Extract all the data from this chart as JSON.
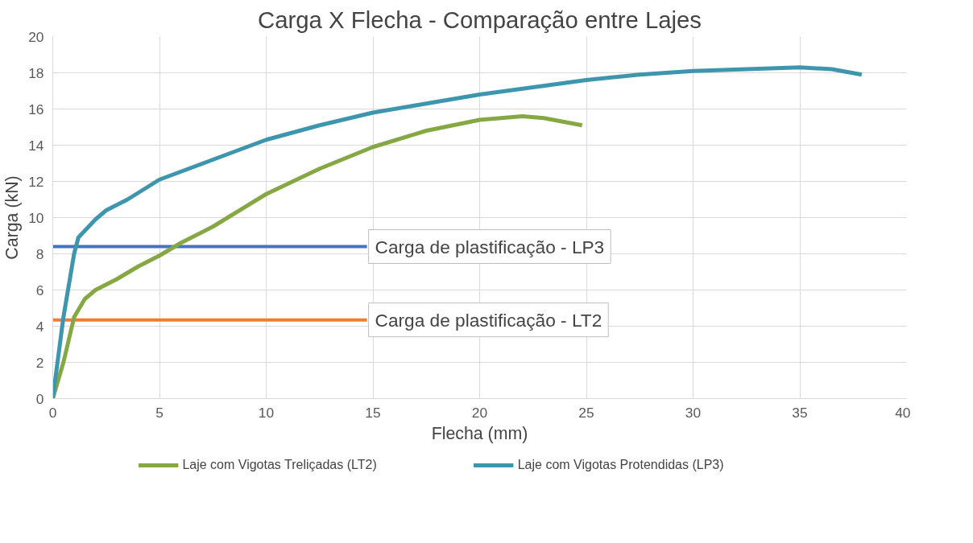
{
  "chart_data": {
    "type": "line",
    "title": "Carga X Flecha - Comparação entre Lajes",
    "xlabel": "Flecha (mm)",
    "ylabel": "Carga (kN)",
    "xlim": [
      0,
      40
    ],
    "xticks": [
      0,
      5,
      10,
      15,
      20,
      25,
      30,
      35,
      40
    ],
    "ylim": [
      0,
      20
    ],
    "yticks": [
      0,
      2,
      4,
      6,
      8,
      10,
      12,
      14,
      16,
      18,
      20
    ],
    "grid": true,
    "legend": "bottom",
    "marker": "none",
    "line_style": "solid",
    "series": [
      {
        "name": "Laje com Vigotas Treliçadas (LT2)",
        "color": "#86a844",
        "x": [
          0,
          0.5,
          1.0,
          1.5,
          2,
          3,
          4,
          5,
          6,
          7.5,
          10,
          12.5,
          15,
          17.5,
          20,
          22,
          23,
          24.8
        ],
        "values": [
          0,
          2.0,
          4.5,
          5.5,
          6.0,
          6.6,
          7.3,
          7.9,
          8.6,
          9.5,
          11.3,
          12.7,
          13.9,
          14.8,
          15.4,
          15.6,
          15.5,
          15.1
        ]
      },
      {
        "name": "Laje com Vigotas Protendidas (LP3)",
        "color": "#3d96ae",
        "x": [
          0,
          0.5,
          1.0,
          1.2,
          2,
          2.5,
          3.5,
          5,
          7.5,
          10,
          12.5,
          15,
          17.5,
          20,
          22.5,
          25,
          27.5,
          30,
          32.5,
          35,
          36.5,
          37.9
        ],
        "values": [
          0,
          4.5,
          8.0,
          8.9,
          9.9,
          10.4,
          11.0,
          12.1,
          13.2,
          14.3,
          15.1,
          15.8,
          16.3,
          16.8,
          17.2,
          17.6,
          17.9,
          18.1,
          18.2,
          18.3,
          18.2,
          17.9
        ]
      }
    ],
    "ref_lines": [
      {
        "axis": "y",
        "value": 8.4,
        "label": "Carga de plastificação - LP3",
        "color": "#4472c4"
      },
      {
        "axis": "y",
        "value": 4.35,
        "label": "Carga de plastificação - LT2",
        "color": "#ed7d31"
      }
    ]
  }
}
